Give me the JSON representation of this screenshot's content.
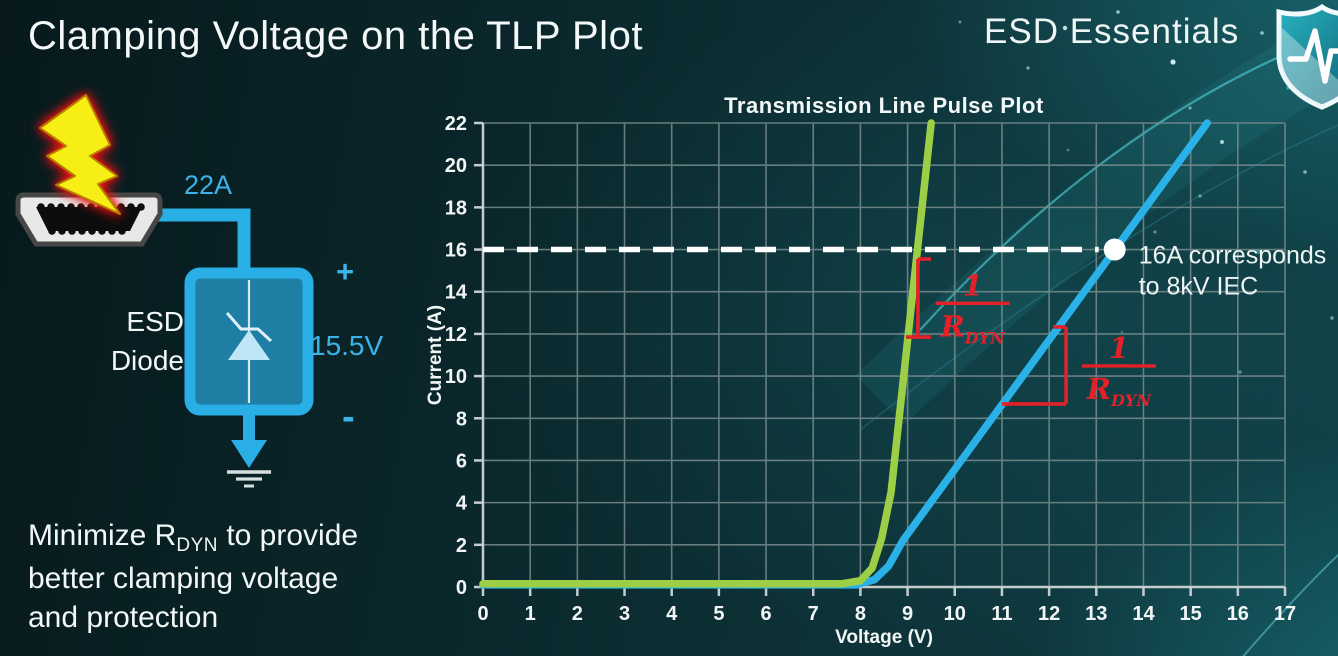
{
  "slide": {
    "title": "Clamping Voltage on the TLP Plot"
  },
  "brand": {
    "name": "ESD Essentials",
    "logo": "shield-pulse-icon"
  },
  "circuit": {
    "surge_label": "22A",
    "device_name_line1": "ESD",
    "device_name_line2": "Diode",
    "polarity_plus": "+",
    "polarity_minus": "-",
    "clamp_voltage": "15.5V",
    "accent_color": "#2aaee6",
    "icons": [
      "lightning-bolt-icon",
      "hdmi-connector-icon",
      "zener-diode-symbol",
      "ground-symbol"
    ]
  },
  "caption": {
    "line1_pre": "Minimize R",
    "line1_sub": "DYN",
    "line1_post": " to provide",
    "line2": "better clamping voltage",
    "line3": "and protection"
  },
  "chart_data": {
    "type": "line",
    "title": "Transmission Line Pulse Plot",
    "xlabel": "Voltage (V)",
    "ylabel": "Current (A)",
    "xlim": [
      0,
      17
    ],
    "ylim": [
      0,
      22
    ],
    "xticks": [
      0,
      1,
      2,
      3,
      4,
      5,
      6,
      7,
      8,
      9,
      10,
      11,
      12,
      13,
      14,
      15,
      16,
      17
    ],
    "yticks": [
      0,
      2,
      4,
      6,
      8,
      10,
      12,
      14,
      16,
      18,
      20,
      22
    ],
    "grid": true,
    "grid_color": "#7e9091",
    "axis_color": "#c4cdcd",
    "series": [
      {
        "name": "high-rdyn-tlp-curve",
        "color": "#2ab2e8",
        "points": [
          [
            0,
            0.1
          ],
          [
            7.9,
            0.1
          ],
          [
            8.3,
            0.35
          ],
          [
            8.6,
            1.0
          ],
          [
            8.9,
            2.2
          ],
          [
            15.35,
            22
          ]
        ]
      },
      {
        "name": "low-rdyn-tlp-curve",
        "color": "#9ccf45",
        "points": [
          [
            0,
            0.15
          ],
          [
            7.6,
            0.15
          ],
          [
            8.0,
            0.3
          ],
          [
            8.25,
            0.9
          ],
          [
            8.45,
            2.3
          ],
          [
            8.65,
            4.5
          ],
          [
            9.5,
            22
          ]
        ]
      }
    ],
    "reference_line": {
      "i": 16,
      "style": "dashed",
      "color": "#ffffff"
    },
    "marker": {
      "v": 13.39,
      "i": 16,
      "color": "#ffffff",
      "label_line1": "16A corresponds",
      "label_line2": "to 8kV IEC"
    },
    "annotation_color": "#e32128",
    "slope_fractions": [
      {
        "numerator": "1",
        "denominator": "R",
        "denominator_sub": "DYN",
        "v": 10.38,
        "i": 13.45
      },
      {
        "numerator": "1",
        "denominator": "R",
        "denominator_sub": "DYN",
        "v": 13.48,
        "i": 10.48
      }
    ],
    "slope_indicators": [
      {
        "type": "vbracket",
        "v": 9.22,
        "i1": 15.55,
        "i2": 11.85
      },
      {
        "type": "elbow",
        "v": 12.36,
        "i_top": 12.33,
        "i_bot": 8.68,
        "v_left": 11.0
      }
    ]
  }
}
